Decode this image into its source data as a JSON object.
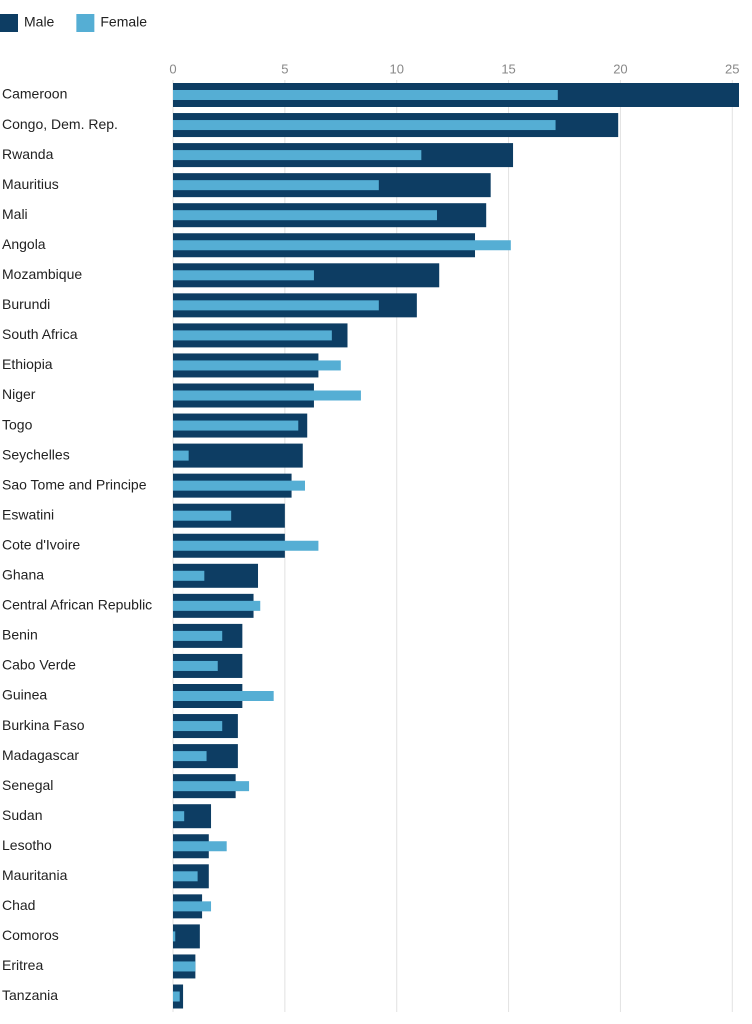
{
  "chart_data": {
    "type": "bar",
    "orientation": "horizontal",
    "categories": [
      "Cameroon",
      "Congo, Dem. Rep.",
      "Rwanda",
      "Mauritius",
      "Mali",
      "Angola",
      "Mozambique",
      "Burundi",
      "South Africa",
      "Ethiopia",
      "Niger",
      "Togo",
      "Seychelles",
      "Sao Tome and Principe",
      "Eswatini",
      "Cote d'Ivoire",
      "Ghana",
      "Central African Republic",
      "Benin",
      "Cabo Verde",
      "Guinea",
      "Burkina Faso",
      "Madagascar",
      "Senegal",
      "Sudan",
      "Lesotho",
      "Mauritania",
      "Chad",
      "Comoros",
      "Eritrea",
      "Tanzania"
    ],
    "series": [
      {
        "name": "Male",
        "color": "#0d3d63",
        "values": [
          25.3,
          19.9,
          15.2,
          14.2,
          14.0,
          13.5,
          11.9,
          10.9,
          7.8,
          6.5,
          6.3,
          6.0,
          5.8,
          5.3,
          5.0,
          5.0,
          3.8,
          3.6,
          3.1,
          3.1,
          3.1,
          2.9,
          2.9,
          2.8,
          1.7,
          1.6,
          1.6,
          1.3,
          1.2,
          1.0,
          0.45
        ]
      },
      {
        "name": "Female",
        "color": "#55aed4",
        "values": [
          17.2,
          17.1,
          11.1,
          9.2,
          11.8,
          15.1,
          6.3,
          9.2,
          7.1,
          7.5,
          8.4,
          5.6,
          0.7,
          5.9,
          2.6,
          6.5,
          1.4,
          3.9,
          2.2,
          2.0,
          4.5,
          2.2,
          1.5,
          3.4,
          0.5,
          2.4,
          1.1,
          1.7,
          0.1,
          1.0,
          0.3
        ]
      }
    ],
    "xlim": [
      0,
      25.3
    ],
    "xticks": [
      0,
      5,
      10,
      15,
      20,
      25
    ],
    "grid": true,
    "legend": "top-left"
  }
}
